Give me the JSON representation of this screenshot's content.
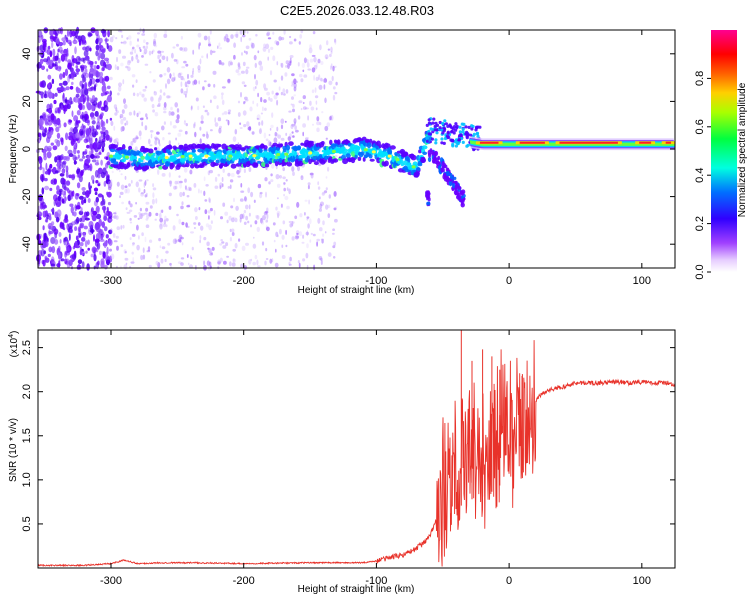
{
  "title": "C2E5.2026.033.12.48.R03",
  "chart_data": [
    {
      "type": "heatmap",
      "name": "spectrogram",
      "xlabel": "Height of straight line (km)",
      "ylabel": "Frequency (Hz)",
      "xlim": [
        -355,
        125
      ],
      "ylim": [
        -50,
        50
      ],
      "xticks": [
        -300,
        -200,
        -100,
        0,
        100
      ],
      "yticks": [
        -40,
        -20,
        0,
        20,
        40
      ],
      "xtick_labels": [
        "-300",
        "-200",
        "-100",
        "0",
        "100"
      ],
      "ytick_labels": [
        "-40",
        "-20",
        "0",
        "20",
        "40"
      ],
      "colorbar": {
        "label": "Normalized spectral amplitude",
        "range": [
          0,
          1
        ],
        "ticks": [
          0.0,
          0.2,
          0.4,
          0.6,
          0.8
        ],
        "tick_labels": [
          "0.0",
          "0.2",
          "0.4",
          "0.6",
          "0.8"
        ],
        "colors": [
          "#ffffff",
          "#cc99ff",
          "#7f00ff",
          "#0000ff",
          "#00ffff",
          "#00ff00",
          "#ffff00",
          "#ff8000",
          "#ff0000",
          "#ff0080"
        ]
      },
      "ridge": [
        {
          "x": -300,
          "y": -3
        },
        {
          "x": -270,
          "y": -4
        },
        {
          "x": -240,
          "y": -3
        },
        {
          "x": -200,
          "y": -3
        },
        {
          "x": -160,
          "y": -2
        },
        {
          "x": -130,
          "y": -1
        },
        {
          "x": -110,
          "y": 0
        },
        {
          "x": -90,
          "y": -3
        },
        {
          "x": -70,
          "y": -8
        },
        {
          "x": -60,
          "y": 6
        },
        {
          "x": -40,
          "y": 4
        },
        {
          "x": -20,
          "y": 2
        },
        {
          "x": 0,
          "y": 2
        },
        {
          "x": 40,
          "y": 2
        },
        {
          "x": 80,
          "y": 2
        },
        {
          "x": 125,
          "y": 2
        }
      ],
      "lower_branch": [
        {
          "x": -60,
          "y": -2
        },
        {
          "x": -50,
          "y": -8
        },
        {
          "x": -40,
          "y": -16
        },
        {
          "x": -35,
          "y": -21
        }
      ]
    },
    {
      "type": "line",
      "name": "snr",
      "xlabel": "Height of straight line (km)",
      "ylabel": "SNR (10 * v/v)",
      "yscale_label": "(x10",
      "yscale_exp": "4",
      "yscale_close": ")",
      "xlim": [
        -355,
        125
      ],
      "ylim": [
        0,
        2.7
      ],
      "xticks": [
        -300,
        -200,
        -100,
        0,
        100
      ],
      "yticks": [
        0.5,
        1.0,
        1.5,
        2.0,
        2.5
      ],
      "xtick_labels": [
        "-300",
        "-200",
        "-100",
        "0",
        "100"
      ],
      "ytick_labels": [
        "0.5",
        "1.0",
        "1.5",
        "2.0",
        "2.5"
      ],
      "color": "#e8322a",
      "series": [
        {
          "name": "SNR",
          "points": [
            [
              -355,
              0.03
            ],
            [
              -320,
              0.03
            ],
            [
              -300,
              0.05
            ],
            [
              -290,
              0.09
            ],
            [
              -280,
              0.05
            ],
            [
              -260,
              0.06
            ],
            [
              -240,
              0.06
            ],
            [
              -200,
              0.05
            ],
            [
              -150,
              0.06
            ],
            [
              -110,
              0.06
            ],
            [
              -100,
              0.08
            ],
            [
              -90,
              0.12
            ],
            [
              -80,
              0.15
            ],
            [
              -70,
              0.22
            ],
            [
              -60,
              0.35
            ],
            [
              -55,
              0.55
            ],
            [
              -50,
              0.75
            ],
            [
              -45,
              1.0
            ],
            [
              -40,
              1.1
            ],
            [
              -35,
              1.2
            ],
            [
              -30,
              1.3
            ],
            [
              -25,
              1.3
            ],
            [
              -20,
              1.35
            ],
            [
              -15,
              1.4
            ],
            [
              -10,
              1.5
            ],
            [
              -5,
              1.6
            ],
            [
              0,
              1.5
            ],
            [
              5,
              1.6
            ],
            [
              10,
              1.7
            ],
            [
              15,
              1.8
            ],
            [
              20,
              1.9
            ],
            [
              25,
              1.98
            ],
            [
              30,
              2.02
            ],
            [
              40,
              2.05
            ],
            [
              50,
              2.1
            ],
            [
              60,
              2.1
            ],
            [
              70,
              2.1
            ],
            [
              80,
              2.11
            ],
            [
              90,
              2.1
            ],
            [
              100,
              2.11
            ],
            [
              110,
              2.1
            ],
            [
              120,
              2.1
            ],
            [
              125,
              2.08
            ]
          ]
        }
      ],
      "spikes": [
        {
          "x": -36,
          "y": 2.7
        },
        {
          "x": -28,
          "y": 2.35
        },
        {
          "x": -20,
          "y": 2.48
        },
        {
          "x": -13,
          "y": 2.4
        },
        {
          "x": -7,
          "y": 2.25
        },
        {
          "x": 10,
          "y": 2.2
        }
      ]
    }
  ]
}
